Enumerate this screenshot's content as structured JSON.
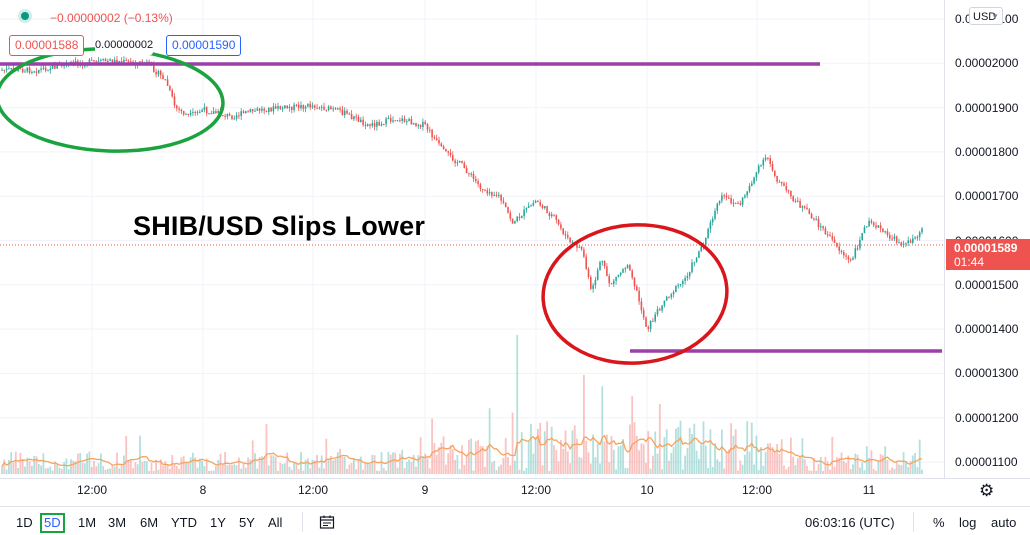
{
  "header": {
    "change": "−0.00000002 (−0.13%)",
    "sell_price": "0.00001588",
    "spread": "0.00000002",
    "buy_price": "0.00001590"
  },
  "headline": "SHIB/USD Slips Lower",
  "price_axis": {
    "currency": "USD",
    "ticks": [
      "0.00002100",
      "0.00002000",
      "0.00001900",
      "0.00001800",
      "0.00001700",
      "0.00001600",
      "0.00001500",
      "0.00001400",
      "0.00001300",
      "0.00001200",
      "0.00001100"
    ],
    "last_price": "0.00001589",
    "countdown": "01:44"
  },
  "time_axis": [
    "12:00",
    "8",
    "12:00",
    "9",
    "12:00",
    "10",
    "12:00",
    "11"
  ],
  "timeframes": [
    "1D",
    "5D",
    "1M",
    "3M",
    "6M",
    "YTD",
    "1Y",
    "5Y",
    "All"
  ],
  "active_timeframe": "5D",
  "clock": "06:03:16 (UTC)",
  "options": {
    "percent": "%",
    "log": "log",
    "auto": "auto"
  },
  "colors": {
    "up": "#26a69a",
    "down": "#ef5350",
    "level_line": "#9c3fa8",
    "circle_green": "#1aa33f",
    "circle_red": "#d9161c",
    "volume_ma": "#f7a35c"
  },
  "icons": {
    "settings": "gear-icon",
    "date_range": "calendar-icon",
    "dropdown": "chevron-down-icon"
  },
  "chart_data": {
    "type": "candlestick",
    "symbol": "SHIB/USD",
    "ylim": [
      1.07e-05,
      2.11e-05
    ],
    "close_path": [
      {
        "x": "7 06:00",
        "y": 1.985e-05
      },
      {
        "x": "7 10:00",
        "y": 2e-05
      },
      {
        "x": "7 14:00",
        "y": 2.005e-05
      },
      {
        "x": "7 18:00",
        "y": 2e-05
      },
      {
        "x": "7 20:00",
        "y": 1.96e-05
      },
      {
        "x": "7 21:00",
        "y": 1.9e-05
      },
      {
        "x": "7 22:30",
        "y": 1.88e-05
      },
      {
        "x": "8 00:00",
        "y": 1.895e-05
      },
      {
        "x": "8 03:00",
        "y": 1.88e-05
      },
      {
        "x": "8 06:00",
        "y": 1.895e-05
      },
      {
        "x": "8 12:00",
        "y": 1.905e-05
      },
      {
        "x": "8 15:00",
        "y": 1.89e-05
      },
      {
        "x": "8 18:00",
        "y": 1.86e-05
      },
      {
        "x": "8 21:00",
        "y": 1.875e-05
      },
      {
        "x": "9 00:00",
        "y": 1.86e-05
      },
      {
        "x": "9 02:00",
        "y": 1.8e-05
      },
      {
        "x": "9 04:00",
        "y": 1.77e-05
      },
      {
        "x": "9 06:00",
        "y": 1.72e-05
      },
      {
        "x": "9 08:00",
        "y": 1.7e-05
      },
      {
        "x": "9 09:30",
        "y": 1.64e-05
      },
      {
        "x": "9 12:00",
        "y": 1.69e-05
      },
      {
        "x": "9 14:00",
        "y": 1.65e-05
      },
      {
        "x": "9 15:30",
        "y": 1.6e-05
      },
      {
        "x": "9 17:00",
        "y": 1.58e-05
      },
      {
        "x": "9 18:00",
        "y": 1.48e-05
      },
      {
        "x": "9 19:00",
        "y": 1.56e-05
      },
      {
        "x": "9 20:00",
        "y": 1.5e-05
      },
      {
        "x": "9 22:00",
        "y": 1.55e-05
      },
      {
        "x": "10 00:00",
        "y": 1.4e-05
      },
      {
        "x": "10 02:00",
        "y": 1.47e-05
      },
      {
        "x": "10 04:00",
        "y": 1.51e-05
      },
      {
        "x": "10 06:00",
        "y": 1.59e-05
      },
      {
        "x": "10 08:00",
        "y": 1.7e-05
      },
      {
        "x": "10 10:00",
        "y": 1.68e-05
      },
      {
        "x": "10 12:00",
        "y": 1.76e-05
      },
      {
        "x": "10 13:00",
        "y": 1.79e-05
      },
      {
        "x": "10 14:00",
        "y": 1.74e-05
      },
      {
        "x": "10 16:00",
        "y": 1.69e-05
      },
      {
        "x": "10 18:00",
        "y": 1.65e-05
      },
      {
        "x": "10 20:00",
        "y": 1.6e-05
      },
      {
        "x": "10 22:00",
        "y": 1.55e-05
      },
      {
        "x": "11 00:00",
        "y": 1.65e-05
      },
      {
        "x": "11 02:00",
        "y": 1.61e-05
      },
      {
        "x": "11 04:00",
        "y": 1.59e-05
      },
      {
        "x": "11 06:00",
        "y": 1.63e-05
      },
      {
        "x": "11 07:30",
        "y": 1.589e-05
      }
    ],
    "horizontal_levels": [
      2e-05,
      1.355e-05
    ]
  }
}
